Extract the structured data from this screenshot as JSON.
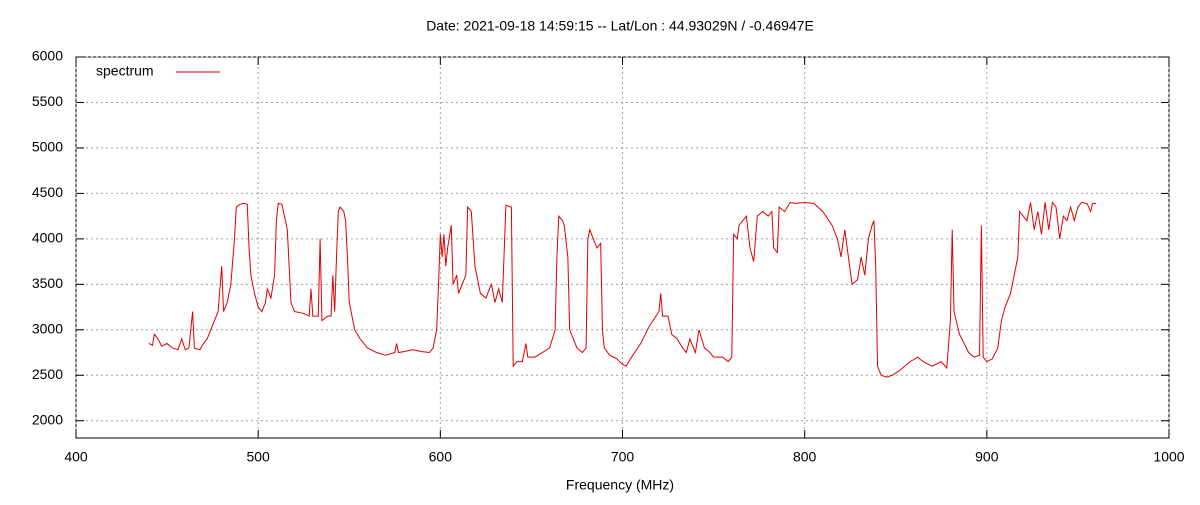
{
  "chart_data": {
    "type": "line",
    "title": "Date: 2021-09-18 14:59:15  --  Lat/Lon : 44.93029N / -0.46947E",
    "x_label": "Frequency (MHz)",
    "xlim": [
      400,
      1000
    ],
    "xticks": [
      400,
      500,
      600,
      700,
      800,
      900,
      1000
    ],
    "ylim": [
      1810,
      6000
    ],
    "yticks": [
      2000,
      2500,
      3000,
      3500,
      4000,
      4500,
      5000,
      5500,
      6000
    ],
    "grid": true,
    "legend": "top-left",
    "x": [
      440,
      442,
      443,
      445,
      447,
      450,
      453,
      456,
      458,
      460,
      462,
      464,
      465,
      468,
      470,
      472,
      474,
      476,
      478,
      480,
      481,
      483,
      485,
      487,
      488,
      490,
      492,
      494,
      495,
      496,
      498,
      500,
      502,
      504,
      505,
      507,
      509,
      510,
      511,
      513,
      515,
      516,
      517,
      518,
      520,
      525,
      528,
      529,
      530,
      533,
      534,
      535,
      538,
      540,
      541,
      542,
      543,
      544,
      545,
      547,
      548,
      549,
      550,
      553,
      556,
      560,
      565,
      570,
      575,
      576,
      577,
      580,
      585,
      590,
      594,
      596,
      598,
      599,
      600,
      601,
      602,
      603,
      604,
      606,
      607,
      609,
      610,
      612,
      614,
      615,
      617,
      619,
      620,
      622,
      625,
      628,
      630,
      632,
      634,
      636,
      639,
      640,
      642,
      645,
      647,
      648,
      652,
      656,
      660,
      663,
      664,
      665,
      667,
      668,
      670,
      671,
      673,
      675,
      678,
      680,
      681,
      682,
      684,
      686,
      688,
      689,
      690,
      693,
      697,
      700,
      702,
      705,
      710,
      715,
      720,
      721,
      722,
      725,
      727,
      730,
      733,
      735,
      737,
      740,
      742,
      745,
      748,
      750,
      755,
      758,
      760,
      761,
      763,
      764,
      766,
      768,
      770,
      772,
      774,
      777,
      780,
      782,
      783,
      785,
      786,
      789,
      792,
      795,
      800,
      805,
      810,
      815,
      818,
      820,
      822,
      824,
      826,
      829,
      831,
      833,
      835,
      837,
      838,
      839,
      840,
      842,
      845,
      848,
      852,
      855,
      858,
      862,
      865,
      870,
      875,
      878,
      880,
      881,
      882,
      885,
      890,
      893,
      896,
      897,
      898,
      900,
      903,
      906,
      908,
      910,
      913,
      915,
      917,
      918,
      920,
      922,
      924,
      926,
      928,
      930,
      932,
      934,
      936,
      938,
      940,
      942,
      944,
      946,
      948,
      950,
      952,
      955,
      957,
      958,
      960
    ],
    "series": [
      {
        "name": "spectrum",
        "color": "#e00000",
        "values": [
          2850,
          2830,
          2950,
          2900,
          2820,
          2850,
          2800,
          2780,
          2900,
          2780,
          2800,
          3200,
          2800,
          2780,
          2850,
          2900,
          3000,
          3100,
          3200,
          3700,
          3200,
          3300,
          3500,
          4000,
          4350,
          4380,
          4390,
          4380,
          3900,
          3600,
          3400,
          3250,
          3200,
          3300,
          3450,
          3350,
          3600,
          4200,
          4390,
          4380,
          4200,
          4100,
          3700,
          3300,
          3200,
          3180,
          3150,
          3450,
          3150,
          3150,
          4000,
          3100,
          3150,
          3150,
          3600,
          3200,
          3800,
          4300,
          4350,
          4300,
          4200,
          3800,
          3300,
          3000,
          2900,
          2800,
          2750,
          2720,
          2750,
          2850,
          2750,
          2760,
          2780,
          2760,
          2750,
          2800,
          3000,
          3500,
          4050,
          3800,
          4050,
          3700,
          3900,
          4150,
          3500,
          3600,
          3400,
          3500,
          3600,
          4350,
          4300,
          3700,
          3600,
          3400,
          3350,
          3500,
          3300,
          3450,
          3300,
          4370,
          4350,
          2600,
          2650,
          2650,
          2850,
          2700,
          2700,
          2750,
          2800,
          3000,
          3800,
          4250,
          4200,
          4150,
          3800,
          3000,
          2900,
          2800,
          2750,
          2800,
          4000,
          4100,
          4000,
          3900,
          3950,
          3000,
          2800,
          2720,
          2680,
          2620,
          2600,
          2700,
          2850,
          3050,
          3200,
          3400,
          3150,
          3150,
          2950,
          2900,
          2800,
          2750,
          2900,
          2750,
          3000,
          2800,
          2750,
          2700,
          2700,
          2650,
          2700,
          4050,
          4000,
          4150,
          4200,
          4250,
          3900,
          3750,
          4250,
          4300,
          4250,
          4300,
          3900,
          3850,
          4350,
          4300,
          4400,
          4390,
          4400,
          4390,
          4300,
          4150,
          4000,
          3800,
          4100,
          3800,
          3500,
          3550,
          3800,
          3600,
          4000,
          4150,
          4200,
          3700,
          2600,
          2500,
          2480,
          2500,
          2550,
          2600,
          2650,
          2700,
          2650,
          2600,
          2650,
          2580,
          3100,
          4100,
          3200,
          2950,
          2750,
          2700,
          2720,
          4150,
          2700,
          2650,
          2680,
          2800,
          3100,
          3250,
          3400,
          3600,
          3800,
          4300,
          4250,
          4200,
          4400,
          4100,
          4300,
          4050,
          4400,
          4100,
          4400,
          4350,
          4000,
          4250,
          4200,
          4350,
          4200,
          4350,
          4400,
          4390,
          4300,
          4390,
          4390
        ]
      }
    ]
  }
}
